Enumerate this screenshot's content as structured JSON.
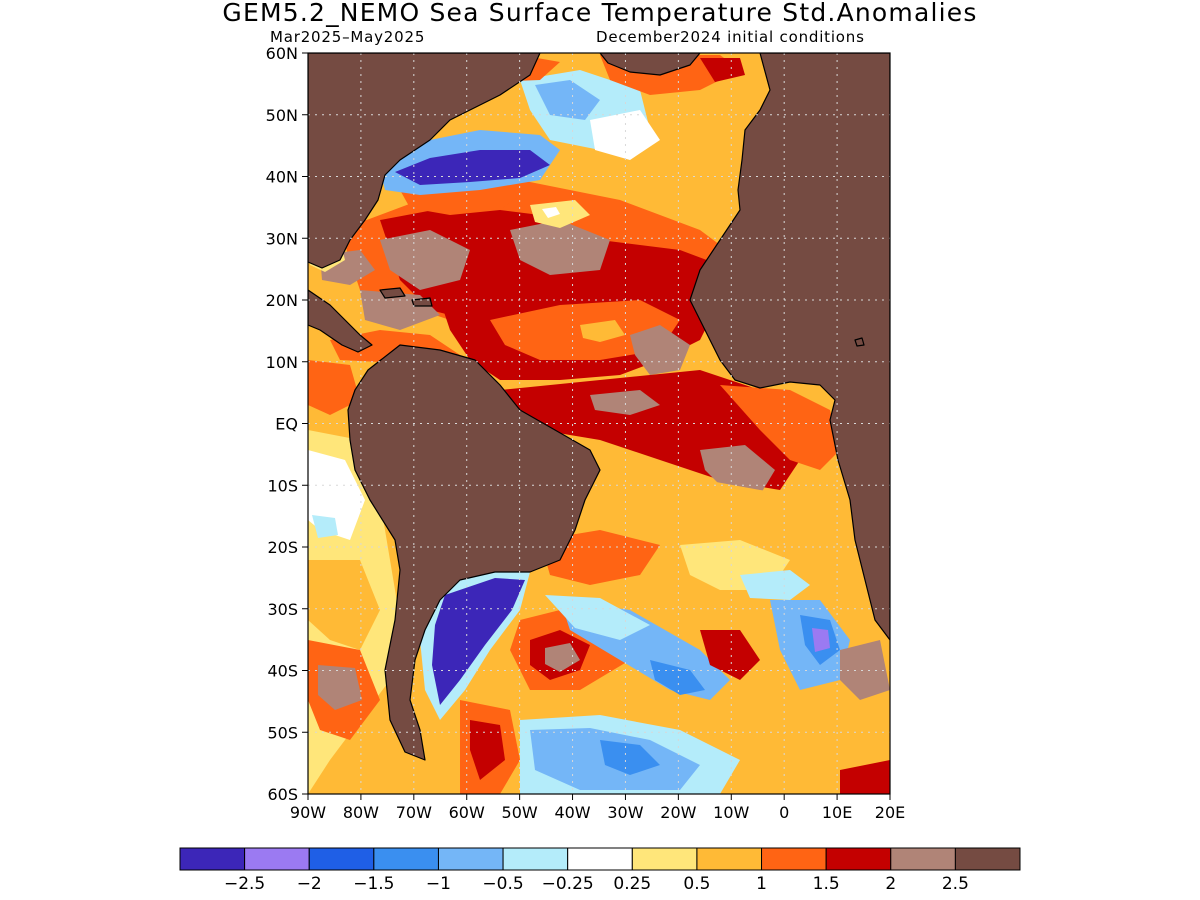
{
  "title": "GEM5.2_NEMO Sea Surface Temperature Std.Anomalies",
  "season": "Mar2025–May2025",
  "init": "December2024 initial conditions",
  "lat_labels": [
    "60N",
    "50N",
    "40N",
    "30N",
    "20N",
    "10N",
    "EQ",
    "10S",
    "20S",
    "30S",
    "40S",
    "50S",
    "60S"
  ],
  "lat_values": [
    60,
    50,
    40,
    30,
    20,
    10,
    0,
    -10,
    -20,
    -30,
    -40,
    -50,
    -60
  ],
  "lon_labels": [
    "90W",
    "80W",
    "70W",
    "60W",
    "50W",
    "40W",
    "30W",
    "20W",
    "10W",
    "0",
    "10E",
    "20E"
  ],
  "lon_values": [
    -90,
    -80,
    -70,
    -60,
    -50,
    -40,
    -30,
    -20,
    -10,
    0,
    10,
    20
  ],
  "colorbar": {
    "colors": [
      "#3c26b8",
      "#9b7af2",
      "#1f5fe6",
      "#3a8ff0",
      "#74b6f7",
      "#b4ecfa",
      "#ffffff",
      "#ffe67a",
      "#ffba36",
      "#ff6414",
      "#c40000",
      "#b08477",
      "#754b42"
    ],
    "labels": [
      "−2.5",
      "−2",
      "−1.5",
      "−1",
      "−0.5",
      "−0.25",
      "0.25",
      "0.5",
      "1",
      "1.5",
      "2",
      "2.5"
    ]
  },
  "colors": {
    "land": "#754b42",
    "ocean_base": "#ffba36",
    "coast": "#000000",
    "grid": "#d8d8d8"
  }
}
